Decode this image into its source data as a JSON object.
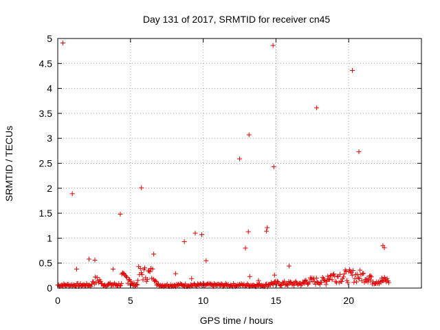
{
  "chart_data": {
    "type": "scatter",
    "title": "Day 131 of 2017, SRMTID for receiver cn45",
    "xlabel": "GPS time / hours",
    "ylabel": "SRMTID / TECUs",
    "xlim": [
      0,
      25
    ],
    "ylim": [
      0,
      5
    ],
    "x_ticks": [
      {
        "value": 0,
        "label": "0"
      },
      {
        "value": 5,
        "label": "5"
      },
      {
        "value": 10,
        "label": "10"
      },
      {
        "value": 15,
        "label": "15"
      },
      {
        "value": 20,
        "label": "20"
      }
    ],
    "y_ticks": [
      {
        "value": 0,
        "label": "0"
      },
      {
        "value": 0.5,
        "label": "0.5"
      },
      {
        "value": 1,
        "label": "1"
      },
      {
        "value": 1.5,
        "label": "1.5"
      },
      {
        "value": 2,
        "label": "2"
      },
      {
        "value": 2.5,
        "label": "2.5"
      },
      {
        "value": 3,
        "label": "3"
      },
      {
        "value": 3.5,
        "label": "3.5"
      },
      {
        "value": 4,
        "label": "4"
      },
      {
        "value": 4.5,
        "label": "4.5"
      },
      {
        "value": 5,
        "label": "5"
      }
    ],
    "grid": true,
    "marker": "+",
    "color": "#e00000",
    "series": [
      {
        "name": "SRMTID",
        "points": [
          [
            0.35,
            4.91
          ],
          [
            1.0,
            1.89
          ],
          [
            1.3,
            0.38
          ],
          [
            2.15,
            0.58
          ],
          [
            2.55,
            0.56
          ],
          [
            3.8,
            0.38
          ],
          [
            4.3,
            1.48
          ],
          [
            5.75,
            2.01
          ],
          [
            6.6,
            0.68
          ],
          [
            8.1,
            0.29
          ],
          [
            8.7,
            0.93
          ],
          [
            9.2,
            0.19
          ],
          [
            9.45,
            1.1
          ],
          [
            9.9,
            1.07
          ],
          [
            10.2,
            0.55
          ],
          [
            12.5,
            2.59
          ],
          [
            12.9,
            0.8
          ],
          [
            13.1,
            1.13
          ],
          [
            13.15,
            3.07
          ],
          [
            13.2,
            0.23
          ],
          [
            13.8,
            0.15
          ],
          [
            14.35,
            1.14
          ],
          [
            14.4,
            1.21
          ],
          [
            14.8,
            4.86
          ],
          [
            14.85,
            2.43
          ],
          [
            14.9,
            0.26
          ],
          [
            15.9,
            0.44
          ],
          [
            17.8,
            3.61
          ],
          [
            20.25,
            4.36
          ],
          [
            20.7,
            2.73
          ],
          [
            22.35,
            0.85
          ],
          [
            22.45,
            0.81
          ]
        ],
        "baseline_segments": [
          [
            0.0,
            2.4,
            0.06
          ],
          [
            2.4,
            3.0,
            0.15
          ],
          [
            3.0,
            4.4,
            0.07
          ],
          [
            4.4,
            5.0,
            0.2
          ],
          [
            5.0,
            5.5,
            0.07
          ],
          [
            5.5,
            6.8,
            0.28
          ],
          [
            6.8,
            14.5,
            0.06
          ],
          [
            14.5,
            17.0,
            0.09
          ],
          [
            17.0,
            18.5,
            0.14
          ],
          [
            18.5,
            21.5,
            0.24
          ],
          [
            21.5,
            22.8,
            0.15
          ]
        ]
      }
    ]
  }
}
